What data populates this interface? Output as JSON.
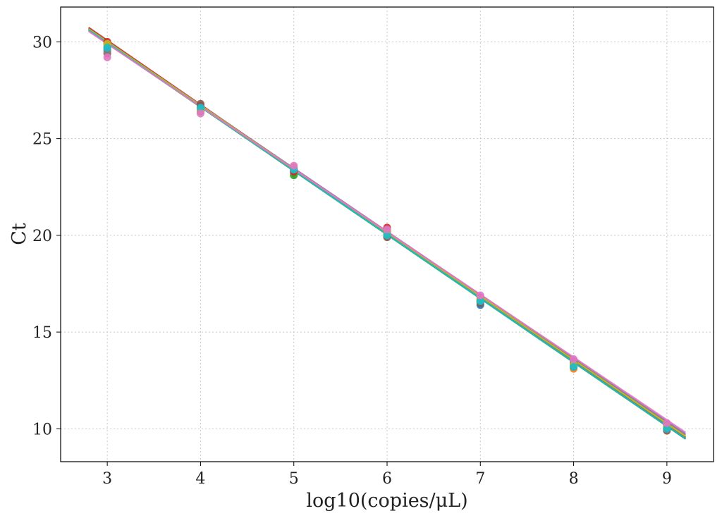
{
  "chart_data": {
    "type": "scatter",
    "title": "",
    "xlabel": "log10(copies/μL)",
    "ylabel": "Ct",
    "xlim": [
      2.5,
      9.5
    ],
    "ylim": [
      8.3,
      31.8
    ],
    "xticks": [
      3,
      4,
      5,
      6,
      7,
      8,
      9
    ],
    "yticks": [
      10,
      15,
      20,
      25,
      30
    ],
    "xtick_labels": [
      "3",
      "4",
      "5",
      "6",
      "7",
      "8",
      "9"
    ],
    "ytick_labels": [
      "10",
      "15",
      "20",
      "25",
      "30"
    ],
    "grid": true,
    "legend": "none",
    "fit_range": [
      2.8,
      9.2
    ],
    "series": [
      {
        "color": "#1f77b4",
        "slope": -3.3,
        "intercept": 39.91,
        "points": [
          [
            3,
            29.9
          ],
          [
            4,
            26.6
          ],
          [
            5,
            23.3
          ],
          [
            6,
            20.1
          ],
          [
            7,
            16.4
          ],
          [
            8,
            13.3
          ],
          [
            9,
            10.0
          ]
        ]
      },
      {
        "color": "#ff7f0e",
        "slope": -3.29,
        "intercept": 39.85,
        "points": [
          [
            3,
            29.8
          ],
          [
            4,
            26.5
          ],
          [
            5,
            23.2
          ],
          [
            6,
            20.2
          ],
          [
            7,
            16.6
          ],
          [
            8,
            13.1
          ],
          [
            9,
            10.1
          ]
        ]
      },
      {
        "color": "#2ca02c",
        "slope": -3.3,
        "intercept": 39.83,
        "points": [
          [
            3,
            29.6
          ],
          [
            4,
            26.5
          ],
          [
            5,
            23.1
          ],
          [
            6,
            20.0
          ],
          [
            7,
            16.7
          ],
          [
            8,
            13.3
          ],
          [
            9,
            10.1
          ]
        ]
      },
      {
        "color": "#d62728",
        "slope": -3.32,
        "intercept": 40.04,
        "points": [
          [
            3,
            30.0
          ],
          [
            4,
            26.7
          ],
          [
            5,
            23.3
          ],
          [
            6,
            20.4
          ],
          [
            7,
            16.6
          ],
          [
            8,
            13.4
          ],
          [
            9,
            10.0
          ]
        ]
      },
      {
        "color": "#9467bd",
        "slope": -3.27,
        "intercept": 39.82,
        "points": [
          [
            3,
            29.7
          ],
          [
            4,
            26.6
          ],
          [
            5,
            23.4
          ],
          [
            6,
            20.2
          ],
          [
            7,
            16.8
          ],
          [
            8,
            13.5
          ],
          [
            9,
            10.2
          ]
        ]
      },
      {
        "color": "#8c564b",
        "slope": -3.31,
        "intercept": 39.97,
        "points": [
          [
            3,
            29.4
          ],
          [
            4,
            26.8
          ],
          [
            5,
            23.5
          ],
          [
            6,
            19.9
          ],
          [
            7,
            16.5
          ],
          [
            8,
            13.2
          ],
          [
            9,
            9.9
          ]
        ]
      },
      {
        "color": "#7f7f7f",
        "slope": -3.28,
        "intercept": 39.84,
        "points": [
          [
            3,
            29.5
          ],
          [
            4,
            26.4
          ],
          [
            5,
            23.4
          ],
          [
            6,
            20.3
          ],
          [
            7,
            16.6
          ],
          [
            8,
            13.4
          ],
          [
            9,
            10.2
          ]
        ]
      },
      {
        "color": "#bcbd22",
        "slope": -3.29,
        "intercept": 39.88,
        "points": [
          [
            3,
            29.9
          ],
          [
            4,
            26.5
          ],
          [
            5,
            23.5
          ],
          [
            6,
            20.1
          ],
          [
            7,
            16.7
          ],
          [
            8,
            13.3
          ],
          [
            9,
            10.1
          ]
        ]
      },
      {
        "color": "#17becf",
        "slope": -3.3,
        "intercept": 39.85,
        "points": [
          [
            3,
            29.7
          ],
          [
            4,
            26.6
          ],
          [
            5,
            23.4
          ],
          [
            6,
            20.0
          ],
          [
            7,
            16.6
          ],
          [
            8,
            13.2
          ],
          [
            9,
            10.0
          ]
        ]
      },
      {
        "color": "#e377c2",
        "slope": -3.24,
        "intercept": 39.62,
        "points": [
          [
            3,
            29.2
          ],
          [
            4,
            26.3
          ],
          [
            5,
            23.6
          ],
          [
            6,
            20.3
          ],
          [
            7,
            16.9
          ],
          [
            8,
            13.6
          ],
          [
            9,
            10.3
          ]
        ]
      }
    ]
  }
}
